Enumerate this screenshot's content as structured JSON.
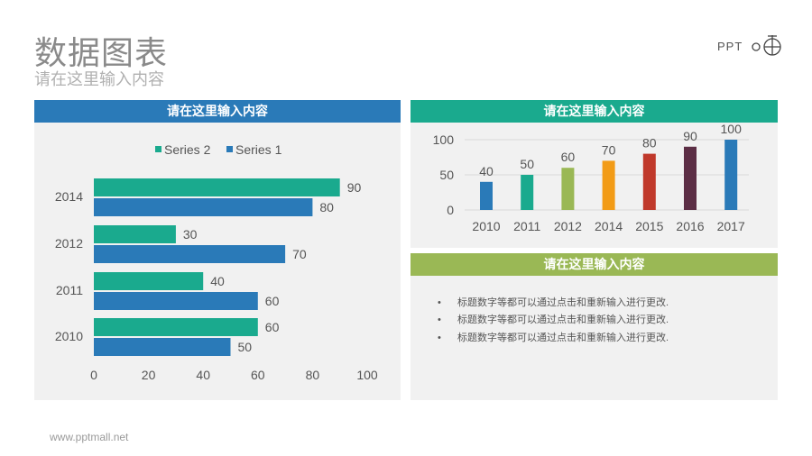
{
  "header": {
    "title": "数据图表",
    "subtitle": "请在这里输入内容",
    "logo_text": "PPT"
  },
  "left_panel": {
    "title": "请在这里输入内容"
  },
  "right_top_panel": {
    "title": "请在这里输入内容"
  },
  "right_bottom_panel": {
    "title": "请在这里输入内容",
    "bullets": [
      "标题数字等都可以通过点击和重新输入进行更改.",
      "标题数字等都可以通过点击和重新输入进行更改.",
      "标题数字等都可以通过点击和重新输入进行更改."
    ]
  },
  "footer": {
    "url": "www.pptmall.net"
  },
  "colors": {
    "blue": "#2a7ab8",
    "teal": "#1aaa8e",
    "green": "#9ab855",
    "panel_bg": "#f1f1f1"
  },
  "chart_data": [
    {
      "type": "bar",
      "orientation": "horizontal",
      "categories": [
        "2014",
        "2012",
        "2011",
        "2010"
      ],
      "series": [
        {
          "name": "Series 2",
          "color": "#1aaa8e",
          "values": [
            90,
            30,
            40,
            60
          ]
        },
        {
          "name": "Series 1",
          "color": "#2a7ab8",
          "values": [
            80,
            70,
            60,
            50
          ]
        }
      ],
      "xlim": [
        0,
        100
      ],
      "xticks": [
        "0",
        "20",
        "40",
        "60",
        "80",
        "100"
      ],
      "legend": "top",
      "grid": false
    },
    {
      "type": "bar",
      "categories": [
        "2010",
        "2011",
        "2012",
        "2014",
        "2015",
        "2016",
        "2017"
      ],
      "values": [
        40,
        50,
        60,
        70,
        80,
        90,
        100
      ],
      "colors": [
        "#2a7ab8",
        "#1aaa8e",
        "#9ab855",
        "#f29b16",
        "#c0392b",
        "#5c2e45",
        "#2a7ab8"
      ],
      "ylim": [
        0,
        100
      ],
      "yticks": [
        "0",
        "50",
        "100"
      ],
      "grid": true
    }
  ]
}
